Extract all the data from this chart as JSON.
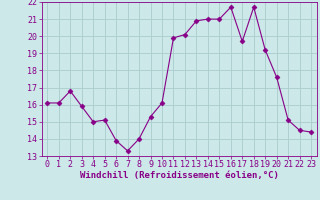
{
  "x": [
    0,
    1,
    2,
    3,
    4,
    5,
    6,
    7,
    8,
    9,
    10,
    11,
    12,
    13,
    14,
    15,
    16,
    17,
    18,
    19,
    20,
    21,
    22,
    23
  ],
  "y": [
    16.1,
    16.1,
    16.8,
    15.9,
    15.0,
    15.1,
    13.9,
    13.3,
    14.0,
    15.3,
    16.1,
    19.9,
    20.1,
    20.9,
    21.0,
    21.0,
    21.7,
    19.7,
    21.7,
    19.2,
    17.6,
    15.1,
    14.5,
    14.4
  ],
  "ylim": [
    13,
    22
  ],
  "yticks": [
    13,
    14,
    15,
    16,
    17,
    18,
    19,
    20,
    21,
    22
  ],
  "xticks": [
    0,
    1,
    2,
    3,
    4,
    5,
    6,
    7,
    8,
    9,
    10,
    11,
    12,
    13,
    14,
    15,
    16,
    17,
    18,
    19,
    20,
    21,
    22,
    23
  ],
  "xlabel": "Windchill (Refroidissement éolien,°C)",
  "line_color": "#880088",
  "marker": "D",
  "marker_size": 2.5,
  "bg_color": "#cce8e8",
  "grid_color": "#aacccc",
  "xlabel_fontsize": 6.5,
  "tick_fontsize": 6.0,
  "xlim_left": -0.5,
  "xlim_right": 23.5
}
